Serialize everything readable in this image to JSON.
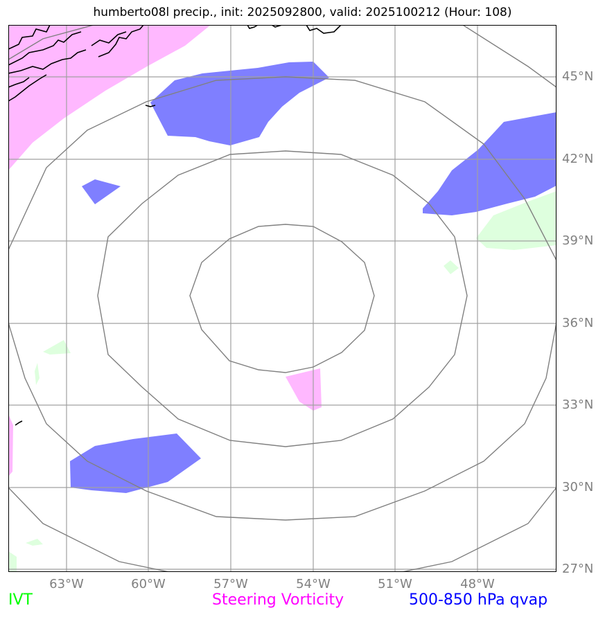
{
  "title": "humberto08l precip., init: 2025092800, valid: 2025100212 (Hour: 108)",
  "lat_labels": [
    "45°N",
    "42°N",
    "39°N",
    "36°N",
    "33°N",
    "30°N",
    "27°N"
  ],
  "lon_labels": [
    "63°W",
    "60°W",
    "57°W",
    "54°W",
    "51°W",
    "48°W"
  ],
  "legend": {
    "ivt": "IVT",
    "steering_vorticity": "Steering Vorticity",
    "qvap": "500-850 hPa qvap"
  },
  "colors": {
    "ivt": "#00ff00",
    "steering_vorticity": "#ff00ff",
    "qvap": "#0000ff",
    "grid": "#808080"
  }
}
